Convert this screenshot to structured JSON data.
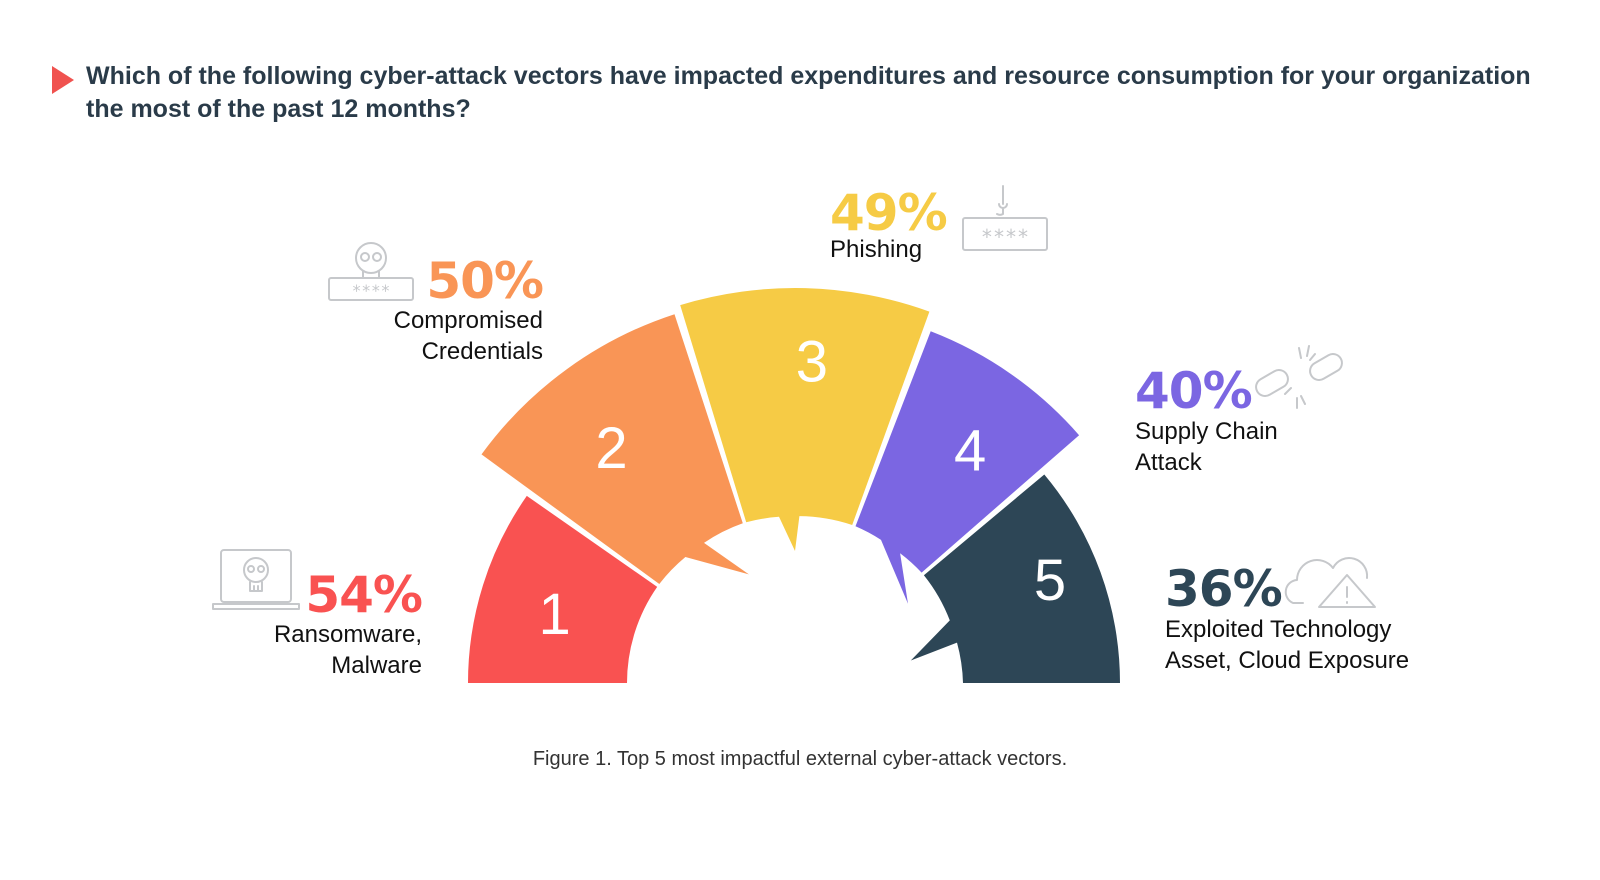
{
  "title": "Which of the following cyber-attack vectors have impacted expenditures and resource consumption for your organization the most of the past 12 months?",
  "caption": "Figure 1. Top 5 most impactful external cyber-attack vectors.",
  "chart_data": {
    "type": "pie",
    "variant": "semicircle-ranked",
    "unit": "%",
    "items": [
      {
        "rank": "1",
        "value": 54,
        "percent_label": "54%",
        "label_lines": [
          "Ransomware,",
          "Malware"
        ],
        "color": "#f95251",
        "icon": "laptop-skull-icon"
      },
      {
        "rank": "2",
        "value": 50,
        "percent_label": "50%",
        "label_lines": [
          "Compromised",
          "Credentials"
        ],
        "color": "#f99556",
        "icon": "skull-password-icon"
      },
      {
        "rank": "3",
        "value": 49,
        "percent_label": "49%",
        "label_lines": [
          "Phishing"
        ],
        "color": "#f6cb45",
        "icon": "hook-password-icon"
      },
      {
        "rank": "4",
        "value": 40,
        "percent_label": "40%",
        "label_lines": [
          "Supply Chain",
          "Attack"
        ],
        "color": "#7b66e2",
        "icon": "broken-chain-icon"
      },
      {
        "rank": "5",
        "value": 36,
        "percent_label": "36%",
        "label_lines": [
          "Exploited Technology",
          "Asset, Cloud Exposure"
        ],
        "color": "#2d4656",
        "icon": "cloud-warning-icon"
      }
    ]
  }
}
